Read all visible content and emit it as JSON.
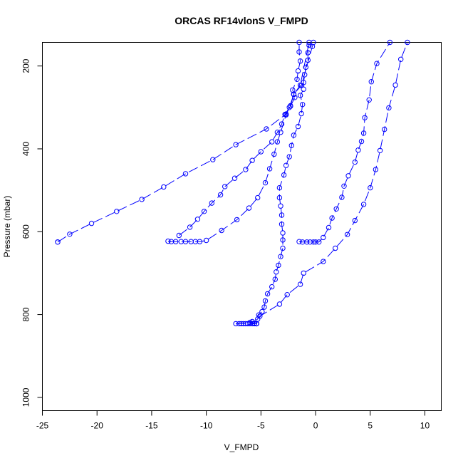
{
  "chart_data": {
    "type": "line",
    "title": "ORCAS RF14vlonS V_FMPD",
    "xlabel": "V_FMPD",
    "ylabel": "Pressure (mbar)",
    "xlim": [
      -25,
      11.5
    ],
    "ylim": [
      1032,
      143
    ],
    "y_reversed": true,
    "xticks": [
      -25,
      -20,
      -15,
      -10,
      -5,
      0,
      5,
      10
    ],
    "yticks": [
      200,
      400,
      600,
      800,
      1000
    ],
    "xtick_labels": [
      "-25",
      "-20",
      "-15",
      "-10",
      "-5",
      "0",
      "5",
      "10"
    ],
    "ytick_labels": [
      "200",
      "400",
      "600",
      "800",
      "1000"
    ],
    "grid": false,
    "legend": "none",
    "color": "#0000ff",
    "series": [
      {
        "points": [
          [
            -23.6,
            625
          ],
          [
            -23.6,
            625
          ],
          [
            -22.5,
            606
          ],
          [
            -20.5,
            580
          ],
          [
            -18.2,
            551
          ],
          [
            -15.9,
            522
          ],
          [
            -13.9,
            492
          ],
          [
            -11.9,
            460
          ],
          [
            -9.4,
            426
          ],
          [
            -7.3,
            390
          ],
          [
            -4.5,
            352
          ],
          [
            -2.7,
            316
          ],
          [
            -2.3,
            297
          ],
          [
            -1.9,
            276
          ],
          [
            -2.1,
            258
          ],
          [
            -1.7,
            232
          ],
          [
            -1.6,
            212
          ],
          [
            -1.4,
            188
          ],
          [
            -1.5,
            166
          ],
          [
            -1.5,
            143
          ]
        ]
      },
      {
        "points": [
          [
            -13.5,
            623
          ],
          [
            -13.2,
            624
          ],
          [
            -12.8,
            624
          ],
          [
            -12.3,
            624
          ],
          [
            -11.9,
            624
          ],
          [
            -11.4,
            624
          ],
          [
            -11.0,
            624
          ],
          [
            -10.6,
            624
          ],
          [
            -10.0,
            621
          ],
          [
            -8.6,
            597
          ],
          [
            -7.2,
            571
          ],
          [
            -6.1,
            543
          ],
          [
            -5.3,
            518
          ],
          [
            -4.6,
            482
          ],
          [
            -4.2,
            448
          ],
          [
            -3.8,
            413
          ],
          [
            -3.5,
            383
          ],
          [
            -3.2,
            360
          ],
          [
            -2.7,
            318
          ],
          [
            -2.4,
            300
          ],
          [
            -2.0,
            269
          ],
          [
            -1.4,
            246
          ],
          [
            -0.6,
            143
          ]
        ]
      },
      {
        "points": [
          [
            -12.5,
            609
          ],
          [
            -11.5,
            589
          ],
          [
            -10.8,
            570
          ],
          [
            -10.2,
            551
          ],
          [
            -9.5,
            531
          ],
          [
            -8.7,
            511
          ],
          [
            -8.3,
            491
          ],
          [
            -7.4,
            471
          ],
          [
            -6.4,
            450
          ],
          [
            -5.8,
            428
          ],
          [
            -5.0,
            407
          ],
          [
            -4.0,
            383
          ],
          [
            -3.5,
            360
          ],
          [
            -3.1,
            340
          ],
          [
            -2.8,
            317
          ],
          [
            -2.3,
            296
          ],
          [
            -2.0,
            268
          ],
          [
            -1.3,
            247
          ],
          [
            -0.3,
            153
          ],
          [
            -0.2,
            143
          ]
        ]
      },
      {
        "points": [
          [
            -1.5,
            624
          ],
          [
            -1.2,
            625
          ],
          [
            -0.8,
            625
          ],
          [
            -0.5,
            625
          ],
          [
            -0.2,
            625
          ],
          [
            0.0,
            625
          ],
          [
            0.3,
            625
          ],
          [
            0.7,
            614
          ],
          [
            1.2,
            590
          ],
          [
            1.5,
            567
          ],
          [
            1.9,
            545
          ],
          [
            2.4,
            517
          ],
          [
            2.6,
            490
          ],
          [
            3.0,
            465
          ],
          [
            3.6,
            432
          ],
          [
            3.9,
            403
          ],
          [
            4.2,
            382
          ],
          [
            4.4,
            362
          ],
          [
            4.5,
            325
          ],
          [
            4.9,
            282
          ],
          [
            5.1,
            238
          ],
          [
            5.6,
            194
          ],
          [
            6.8,
            143
          ]
        ]
      },
      {
        "points": [
          [
            -5.4,
            822
          ],
          [
            -5.4,
            822
          ],
          [
            -5.4,
            822
          ],
          [
            -5.6,
            821
          ],
          [
            -6.0,
            819
          ],
          [
            -5.8,
            817
          ],
          [
            -5.3,
            811
          ],
          [
            -5.2,
            801
          ],
          [
            -4.9,
            793
          ],
          [
            -4.7,
            782
          ],
          [
            -4.6,
            767
          ],
          [
            -4.4,
            750
          ],
          [
            -4.0,
            733
          ],
          [
            -3.7,
            715
          ],
          [
            -3.6,
            697
          ],
          [
            -3.4,
            681
          ],
          [
            -3.2,
            660
          ],
          [
            -3.0,
            640
          ],
          [
            -3.0,
            620
          ],
          [
            -3.0,
            603
          ],
          [
            -3.1,
            582
          ],
          [
            -3.1,
            560
          ],
          [
            -3.2,
            538
          ],
          [
            -3.3,
            518
          ],
          [
            -3.3,
            494
          ],
          [
            -2.9,
            463
          ],
          [
            -2.7,
            440
          ],
          [
            -2.4,
            419
          ],
          [
            -2.2,
            392
          ],
          [
            -2.0,
            367
          ],
          [
            -1.6,
            346
          ],
          [
            -1.3,
            315
          ],
          [
            -1.2,
            293
          ],
          [
            -1.4,
            271
          ],
          [
            -1.1,
            256
          ],
          [
            -1.1,
            240
          ],
          [
            -1.0,
            221
          ],
          [
            -0.9,
            203
          ],
          [
            -0.7,
            186
          ],
          [
            -0.7,
            168
          ],
          [
            -0.6,
            150
          ]
        ]
      },
      {
        "points": [
          [
            -7.3,
            822
          ],
          [
            -7.0,
            822
          ],
          [
            -6.8,
            822
          ],
          [
            -6.6,
            822
          ],
          [
            -6.4,
            822
          ],
          [
            -6.2,
            822
          ],
          [
            -6.0,
            822
          ],
          [
            -5.8,
            822
          ],
          [
            -5.6,
            822
          ],
          [
            -5.4,
            822
          ],
          [
            -5.1,
            804
          ],
          [
            -3.3,
            775
          ],
          [
            -2.6,
            752
          ],
          [
            -1.4,
            727
          ],
          [
            -1.1,
            700
          ],
          [
            0.7,
            672
          ],
          [
            1.8,
            640
          ],
          [
            2.9,
            607
          ],
          [
            3.6,
            573
          ],
          [
            4.4,
            534
          ],
          [
            5.0,
            494
          ],
          [
            5.5,
            450
          ],
          [
            5.9,
            404
          ],
          [
            6.3,
            353
          ],
          [
            6.7,
            301
          ],
          [
            7.3,
            246
          ],
          [
            7.8,
            184
          ],
          [
            8.4,
            143
          ]
        ]
      }
    ]
  }
}
